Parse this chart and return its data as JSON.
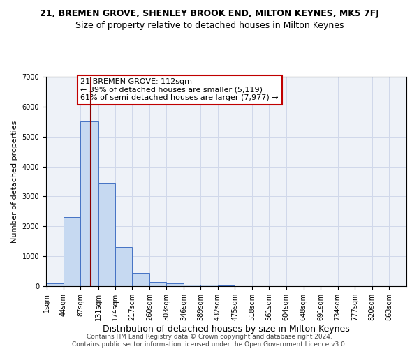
{
  "title": "21, BREMEN GROVE, SHENLEY BROOK END, MILTON KEYNES, MK5 7FJ",
  "subtitle": "Size of property relative to detached houses in Milton Keynes",
  "xlabel": "Distribution of detached houses by size in Milton Keynes",
  "ylabel": "Number of detached properties",
  "bin_edges": [
    1,
    44,
    87,
    131,
    174,
    217,
    260,
    303,
    346,
    389,
    432,
    475,
    518,
    561,
    604,
    648,
    691,
    734,
    777,
    820,
    863
  ],
  "bin_heights": [
    100,
    2300,
    5500,
    3450,
    1300,
    450,
    150,
    100,
    50,
    40,
    20,
    10,
    5,
    5,
    3,
    2,
    2,
    1,
    1,
    0
  ],
  "bar_facecolor": "#c6d9f1",
  "bar_edgecolor": "#4472c4",
  "vline_x": 112,
  "vline_color": "#8b0000",
  "annotation_text": "21 BREMEN GROVE: 112sqm\n← 39% of detached houses are smaller (5,119)\n61% of semi-detached houses are larger (7,977) →",
  "annotation_box_edgecolor": "#c00000",
  "annotation_box_facecolor": "white",
  "ylim": [
    0,
    7000
  ],
  "yticks": [
    0,
    1000,
    2000,
    3000,
    4000,
    5000,
    6000,
    7000
  ],
  "grid_color": "#d0d8ea",
  "background_color": "#eef2f8",
  "footer_line1": "Contains HM Land Registry data © Crown copyright and database right 2024.",
  "footer_line2": "Contains public sector information licensed under the Open Government Licence v3.0.",
  "title_fontsize": 9,
  "subtitle_fontsize": 9,
  "xlabel_fontsize": 9,
  "ylabel_fontsize": 8,
  "tick_fontsize": 7,
  "annotation_fontsize": 8,
  "footer_fontsize": 6.5
}
